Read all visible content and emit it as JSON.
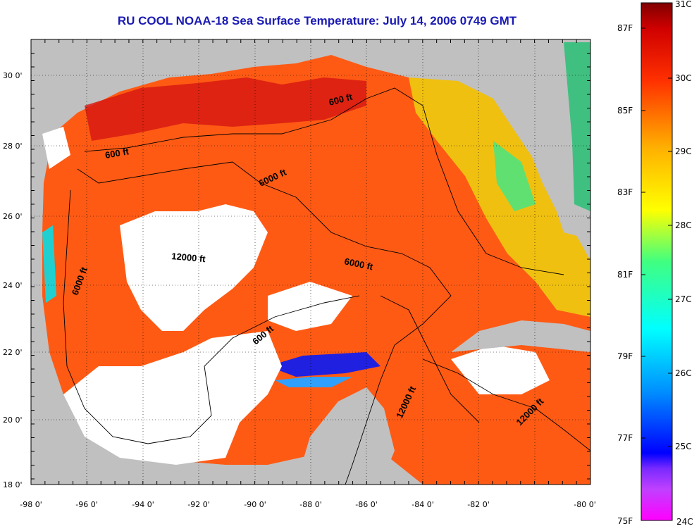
{
  "title": "RU COOL  NOAA-18  Sea Surface Temperature:  July 14, 2006 0749 GMT",
  "axes": {
    "x_ticks": [
      "-98 0'",
      "-96 0'",
      "-94 0'",
      "-92 0'",
      "-90 0'",
      "-88 0'",
      "-86 0'",
      "-84 0'",
      "-82 0'",
      "-80 0'"
    ],
    "y_ticks": [
      "30 0'",
      "28 0'",
      "26 0'",
      "24 0'",
      "22 0'",
      "20 0'",
      "18 0'"
    ]
  },
  "contour_labels": [
    "600 ft",
    "600 ft",
    "6000 ft",
    "12000 ft",
    "6000 ft",
    "6000 ft",
    "600 ft",
    "12000 ft",
    "12000 ft"
  ],
  "colorbar": {
    "fahrenheit": [
      "87F",
      "85F",
      "83F",
      "81F",
      "79F",
      "77F",
      "75F"
    ],
    "celsius": [
      "31C",
      "30C",
      "29C",
      "28C",
      "27C",
      "26C",
      "25C",
      "24C"
    ]
  },
  "colors": {
    "land": "#c0c0c0",
    "cloud": "#ffffff",
    "title": "#1a1ab4",
    "warm": "#ff4a10",
    "hot": "#d41010"
  }
}
